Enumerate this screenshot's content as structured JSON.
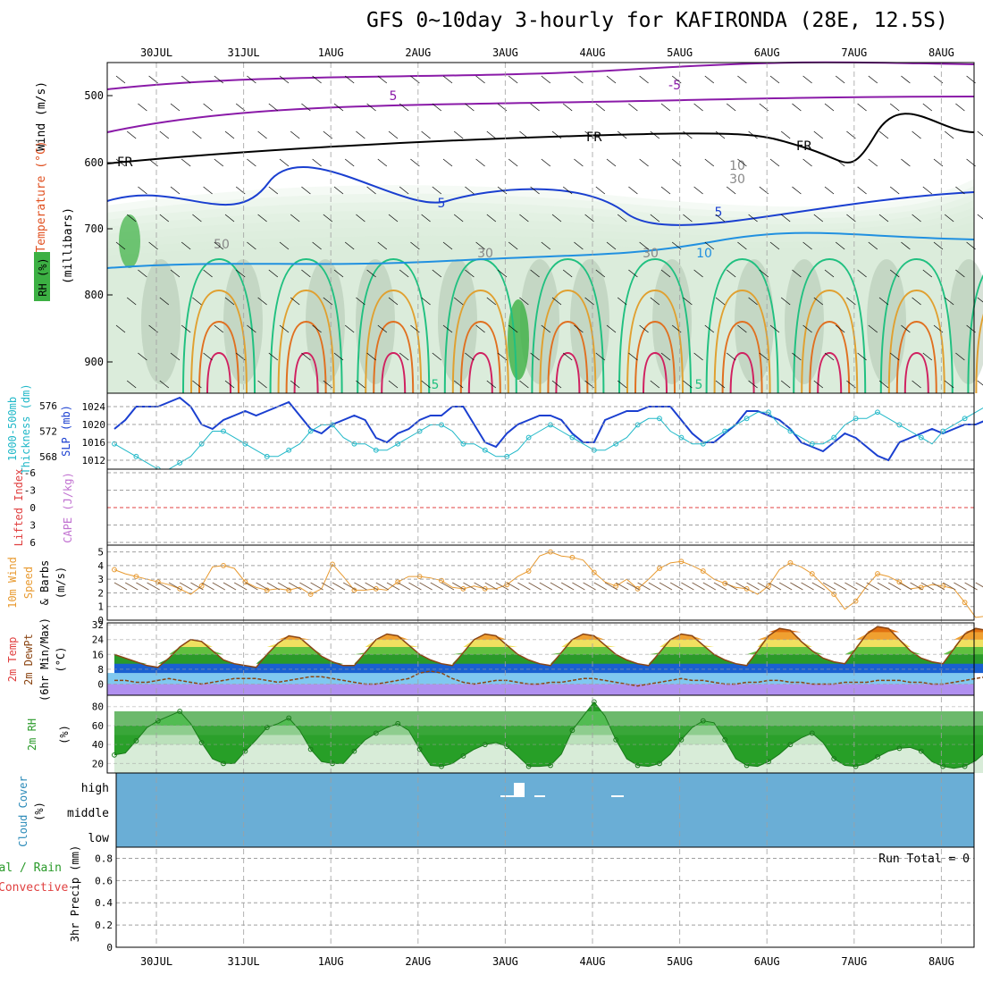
{
  "title": "GFS 0~10day 3-hourly for KAFIRONDA (28E, 12.5S)",
  "colors": {
    "frame": "#000000",
    "grid": "#a0a0a0",
    "slp": "#1a3fd0",
    "thickness": "#20b8c8",
    "wind10m": "#e89a30",
    "barb": "#7a5a40",
    "rh_fill_dark": "#2a9a2a",
    "rh_fill_light": "#d8ecd8",
    "cloud_bg": "#6aaed6",
    "lifted_zero": "#e04040",
    "temp_low": "#2a9a2a",
    "temp_high": "#e07010",
    "freezing_band": "#b090f0",
    "cold_band": "#80c8f0"
  },
  "dates": [
    "30JUL",
    "31JUL",
    "1AUG",
    "2AUG",
    "3AUG",
    "4AUG",
    "5AUG",
    "6AUG",
    "7AUG",
    "8AUG"
  ],
  "panels": {
    "upper": {
      "ylabel": "(millibars)",
      "side_labels": [
        "Wind (m/s)",
        "Temperature (°C)",
        "RH (%)"
      ],
      "ticks": [
        "500",
        "600",
        "700",
        "800",
        "900"
      ],
      "contour_labels": [
        "5",
        "-5",
        "FR",
        "FR",
        "FR",
        "10",
        "30",
        "50",
        "30",
        "30",
        "5",
        "5",
        "10",
        "5",
        "5"
      ]
    },
    "slp": {
      "side_labels": [
        "1000-500mb",
        "Thickness (dm)",
        "SLP (mb)"
      ],
      "left_ticks": [
        "576",
        "572",
        "568"
      ],
      "right_ticks": [
        "1024",
        "1020",
        "1016",
        "1012"
      ]
    },
    "cape": {
      "side_labels": [
        "Lifted Index",
        "CAPE (J/kg)"
      ],
      "ticks": [
        "-6",
        "-3",
        "0",
        "3",
        "6"
      ]
    },
    "wind": {
      "side_labels": [
        "10m Wind",
        "Speed",
        "& Barbs",
        "(m/s)"
      ],
      "ticks": [
        "5",
        "4",
        "3",
        "2",
        "1",
        "0"
      ]
    },
    "temp": {
      "side_labels": [
        "2m Temp",
        "2m DewPt",
        "(6hr Min/Max)",
        "(°C)"
      ],
      "ticks": [
        "32",
        "24",
        "16",
        "8",
        "0"
      ]
    },
    "rh2m": {
      "side_labels": [
        "2m RH",
        "(%)"
      ],
      "ticks": [
        "80",
        "60",
        "40",
        "20"
      ]
    },
    "cloud": {
      "side_labels": [
        "Cloud Cover",
        "(%)"
      ],
      "ticks": [
        "high",
        "middle",
        "low"
      ]
    },
    "precip": {
      "side_labels": [
        "Total / Rain",
        "Convective",
        "3hr Precip (mm)"
      ],
      "ticks": [
        "0.8",
        "0.6",
        "0.4",
        "0.2",
        "0"
      ],
      "run_total": "Run Total = 0"
    }
  },
  "chart_data": [
    {
      "type": "line",
      "name": "SLP (mb)",
      "x_start": "29JUL 12Z",
      "x_step_hours": 3,
      "values": [
        1019,
        1021,
        1024,
        1024,
        1024,
        1025,
        1026,
        1024,
        1020,
        1019,
        1021,
        1022,
        1023,
        1022,
        1023,
        1024,
        1025,
        1022,
        1019,
        1018,
        1020,
        1021,
        1022,
        1021,
        1017,
        1016,
        1018,
        1019,
        1021,
        1022,
        1022,
        1024,
        1024,
        1020,
        1016,
        1015,
        1018,
        1020,
        1021,
        1022,
        1022,
        1021,
        1018,
        1016,
        1016,
        1021,
        1022,
        1023,
        1023,
        1024,
        1024,
        1024,
        1021,
        1018,
        1016,
        1016,
        1018,
        1020,
        1023,
        1023,
        1022,
        1021,
        1019,
        1016,
        1015,
        1014,
        1016,
        1018,
        1017,
        1015,
        1013,
        1012,
        1016,
        1017,
        1018,
        1019,
        1018,
        1019,
        1020,
        1020,
        1021,
        1020,
        1019,
        1018,
        1017,
        1019,
        1020,
        1021,
        1022,
        1018,
        1016,
        1013,
        1012,
        1016,
        1019,
        1021,
        1019,
        1018
      ],
      "ylim": [
        1010,
        1027
      ]
    },
    {
      "type": "line",
      "name": "1000-500mb Thickness (dm)",
      "x_start": "29JUL 12Z",
      "x_step_hours": 3,
      "values": [
        570,
        569,
        568,
        567,
        566,
        566,
        567,
        568,
        570,
        572,
        572,
        571,
        570,
        569,
        568,
        568,
        569,
        570,
        572,
        573,
        573,
        571,
        570,
        570,
        569,
        569,
        570,
        571,
        572,
        573,
        573,
        572,
        570,
        570,
        569,
        568,
        568,
        569,
        571,
        572,
        573,
        572,
        571,
        570,
        569,
        569,
        570,
        571,
        573,
        574,
        574,
        572,
        571,
        570,
        570,
        571,
        572,
        573,
        574,
        575,
        575,
        573,
        572,
        571,
        570,
        570,
        571,
        573,
        574,
        574,
        575,
        574,
        573,
        572,
        571,
        570,
        572,
        573,
        574,
        575,
        576,
        575,
        573,
        572,
        571,
        571,
        572,
        573,
        574,
        575,
        575,
        573,
        572,
        571,
        571,
        572,
        573,
        572
      ],
      "ylim": [
        566,
        578
      ]
    },
    {
      "type": "line",
      "name": "10m Wind Speed (m/s)",
      "x_start": "29JUL 12Z",
      "x_step_hours": 3,
      "values": [
        3.7,
        3.4,
        3.2,
        3.0,
        2.8,
        2.6,
        2.3,
        1.9,
        2.5,
        3.9,
        4.0,
        3.8,
        2.8,
        2.4,
        2.2,
        2.3,
        2.2,
        2.4,
        1.9,
        2.3,
        4.1,
        3.2,
        2.2,
        2.2,
        2.3,
        2.2,
        2.8,
        3.2,
        3.2,
        3.1,
        2.9,
        2.4,
        2.3,
        2.5,
        2.3,
        2.3,
        2.6,
        3.2,
        3.6,
        4.7,
        5.0,
        4.7,
        4.6,
        4.4,
        3.5,
        2.8,
        2.5,
        3.0,
        2.3,
        3.0,
        3.8,
        4.2,
        4.3,
        4.0,
        3.6,
        3.0,
        2.7,
        2.4,
        2.3,
        1.9,
        2.5,
        3.7,
        4.2,
        3.9,
        3.4,
        2.6,
        1.9,
        0.8,
        1.4,
        2.5,
        3.4,
        3.2,
        2.8,
        2.3,
        2.4,
        2.6,
        2.5,
        2.3,
        1.3,
        0.2,
        0.3,
        0.6,
        1.9,
        2.5,
        4.1,
        4.1,
        2.3,
        2.4,
        2.3,
        2.1,
        2.0,
        2.1,
        2.3,
        2.3,
        3.7,
        3.9,
        4.1,
        3.4,
        2.9
      ],
      "ylim": [
        0,
        5.5
      ]
    },
    {
      "type": "area",
      "name": "2m Temp (°C)",
      "x_start": "29JUL 12Z",
      "x_step_hours": 3,
      "values": [
        16,
        14,
        12,
        10,
        9,
        14,
        20,
        24,
        23,
        18,
        13,
        11,
        10,
        9,
        16,
        22,
        26,
        25,
        20,
        15,
        12,
        10,
        10,
        17,
        24,
        27,
        26,
        21,
        16,
        13,
        11,
        10,
        17,
        24,
        27,
        26,
        21,
        16,
        13,
        11,
        10,
        17,
        24,
        27,
        26,
        21,
        16,
        13,
        11,
        10,
        17,
        24,
        27,
        26,
        21,
        16,
        13,
        11,
        10,
        18,
        26,
        30,
        29,
        23,
        18,
        14,
        12,
        11,
        19,
        27,
        31,
        30,
        24,
        18,
        14,
        12,
        11,
        19,
        27,
        30,
        29,
        23,
        17,
        14,
        12,
        11,
        18,
        24,
        16
      ],
      "ylim": [
        -6,
        33
      ]
    },
    {
      "type": "line",
      "name": "2m DewPt (°C)",
      "x_start": "29JUL 12Z",
      "x_step_hours": 3,
      "values": [
        2,
        2,
        1,
        1,
        2,
        3,
        2,
        1,
        0,
        1,
        2,
        3,
        3,
        3,
        2,
        1,
        2,
        3,
        4,
        4,
        3,
        2,
        1,
        0,
        0,
        1,
        2,
        3,
        6,
        7,
        6,
        3,
        1,
        0,
        1,
        2,
        2,
        1,
        0,
        0,
        1,
        1,
        2,
        3,
        3,
        2,
        1,
        0,
        -1,
        0,
        1,
        2,
        3,
        2,
        2,
        1,
        0,
        0,
        1,
        1,
        2,
        2,
        1,
        1,
        0,
        0,
        0,
        1,
        1,
        1,
        2,
        2,
        2,
        1,
        1,
        0,
        0,
        1,
        2,
        3,
        4,
        4,
        3
      ],
      "ylim": [
        -6,
        33
      ]
    },
    {
      "type": "area",
      "name": "2m RH (%)",
      "x_start": "29JUL 12Z",
      "x_step_hours": 3,
      "values": [
        29,
        31,
        44,
        58,
        65,
        70,
        75,
        62,
        42,
        25,
        20,
        20,
        33,
        45,
        58,
        62,
        68,
        55,
        35,
        22,
        20,
        20,
        33,
        45,
        52,
        58,
        62,
        55,
        35,
        18,
        17,
        20,
        28,
        35,
        40,
        42,
        38,
        28,
        17,
        17,
        18,
        30,
        55,
        70,
        85,
        70,
        45,
        25,
        18,
        17,
        20,
        30,
        45,
        58,
        65,
        63,
        45,
        25,
        18,
        17,
        22,
        30,
        40,
        47,
        52,
        42,
        25,
        18,
        17,
        20,
        27,
        33,
        36,
        37,
        33,
        22,
        17,
        15,
        17,
        23,
        33,
        40,
        45,
        45,
        38,
        25,
        17,
        15,
        17,
        22,
        35,
        45,
        55,
        62,
        48
      ],
      "ylim": [
        10,
        92
      ]
    },
    {
      "type": "bar",
      "name": "3hr Precip (mm)",
      "categories": [],
      "values": [],
      "ylim": [
        0,
        0.9
      ]
    }
  ]
}
